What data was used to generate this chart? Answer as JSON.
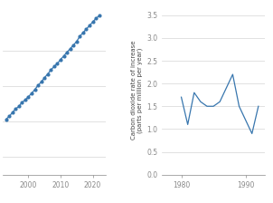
{
  "left": {
    "years": [
      1993,
      1994,
      1995,
      1996,
      1997,
      1998,
      1999,
      2000,
      2001,
      2002,
      2003,
      2004,
      2005,
      2006,
      2007,
      2008,
      2009,
      2010,
      2011,
      2012,
      2013,
      2014,
      2015,
      2016,
      2017,
      2018,
      2019,
      2020,
      2021,
      2022
    ],
    "co2": [
      361.2,
      362.8,
      365.0,
      367.0,
      368.4,
      370.8,
      372.0,
      374.0,
      375.8,
      378.0,
      380.3,
      382.3,
      384.6,
      386.7,
      389.0,
      391.0,
      392.6,
      394.9,
      396.9,
      399.0,
      401.0,
      403.0,
      405.0,
      408.0,
      410.0,
      412.0,
      414.0,
      416.0,
      418.0,
      419.5
    ],
    "yticks": [
      340,
      360,
      380,
      400
    ],
    "ylim": [
      330,
      425
    ],
    "xlim": [
      1992,
      2024
    ],
    "xticks": [
      2000,
      2010,
      2020
    ]
  },
  "right": {
    "years": [
      1980,
      1981,
      1982,
      1983,
      1984,
      1985,
      1986,
      1987,
      1988,
      1989,
      1990,
      1991,
      1992
    ],
    "rate": [
      1.7,
      1.1,
      1.8,
      1.6,
      1.5,
      1.5,
      1.6,
      1.9,
      2.2,
      1.5,
      1.2,
      0.9,
      1.5
    ],
    "ylim": [
      0,
      3.7
    ],
    "yticks": [
      0,
      0.5,
      1.0,
      1.5,
      2.0,
      2.5,
      3.0,
      3.5
    ],
    "xlim": [
      1977,
      1993
    ],
    "xticks": [
      1980,
      1990
    ],
    "ylabel": "Carbon dioxide rate of increase\n(parts per million per year)"
  },
  "line_color": "#3876ae",
  "markersize": 3.0,
  "linewidth": 0.9,
  "grid_color": "#d4d4d4",
  "tick_color": "#888888",
  "label_color": "#444444",
  "label_fontsize": 5.0,
  "tick_fontsize": 5.5,
  "bg_color": "#ffffff"
}
